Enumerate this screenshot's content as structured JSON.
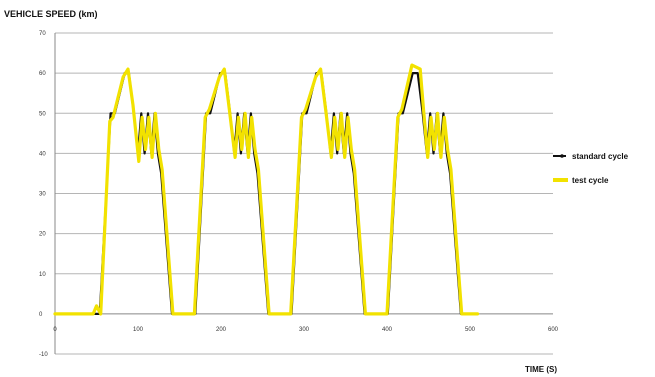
{
  "chart_data": {
    "type": "line",
    "title": "VEHICLE SPEED (km)",
    "xlabel": "TIME (S)",
    "ylabel": "",
    "xlim": [
      0,
      600
    ],
    "ylim": [
      -10,
      70
    ],
    "x_ticks": [
      0,
      100,
      200,
      300,
      400,
      500,
      600
    ],
    "y_ticks": [
      -10,
      0,
      10,
      20,
      30,
      40,
      50,
      60,
      70
    ],
    "grid": "horizontal",
    "legend_position": "right",
    "series": [
      {
        "name": "standard cycle",
        "color": "#111111",
        "x": [
          0,
          49,
          54,
          67,
          72,
          84,
          89,
          95,
          100,
          104,
          108,
          112,
          116,
          120,
          124,
          128,
          141,
          144,
          165,
          169,
          182,
          187,
          199,
          205,
          211,
          216,
          220,
          224,
          228,
          232,
          236,
          240,
          244,
          257,
          260,
          281,
          285,
          298,
          303,
          315,
          321,
          327,
          332,
          336,
          340,
          344,
          348,
          352,
          356,
          360,
          373,
          376,
          397,
          401,
          414,
          419,
          431,
          437,
          443,
          448,
          452,
          456,
          460,
          464,
          468,
          472,
          476,
          489,
          492,
          509
        ],
        "y": [
          0,
          0,
          0,
          50,
          50,
          60,
          60,
          50,
          40,
          50,
          40,
          50,
          40,
          50,
          40,
          35,
          0,
          0,
          0,
          0,
          50,
          50,
          60,
          60,
          50,
          40,
          50,
          40,
          50,
          40,
          50,
          40,
          35,
          0,
          0,
          0,
          0,
          50,
          50,
          60,
          60,
          50,
          40,
          50,
          40,
          50,
          40,
          50,
          40,
          35,
          0,
          0,
          0,
          0,
          50,
          50,
          60,
          60,
          50,
          40,
          50,
          40,
          50,
          40,
          50,
          40,
          35,
          0,
          0,
          0
        ]
      },
      {
        "name": "test cycle",
        "color": "#f2e200",
        "x": [
          0,
          46,
          50,
          55,
          66,
          70,
          82,
          88,
          94,
          101,
          105,
          109,
          113,
          117,
          121,
          125,
          129,
          142,
          145,
          164,
          168,
          181,
          186,
          198,
          204,
          210,
          217,
          221,
          225,
          229,
          233,
          237,
          241,
          245,
          258,
          261,
          280,
          284,
          297,
          302,
          314,
          320,
          326,
          333,
          337,
          341,
          345,
          349,
          353,
          357,
          361,
          374,
          377,
          396,
          400,
          413,
          418,
          430,
          440,
          444,
          449,
          453,
          457,
          461,
          465,
          469,
          473,
          477,
          490,
          493,
          509
        ],
        "y": [
          0,
          0,
          2,
          0,
          48,
          49,
          59,
          61,
          52,
          38,
          49,
          41,
          49,
          39,
          50,
          41,
          36,
          0,
          0,
          0,
          0,
          49,
          51,
          59,
          61,
          51,
          39,
          49,
          41,
          50,
          39,
          49,
          41,
          36,
          0,
          0,
          0,
          0,
          49,
          51,
          59,
          61,
          51,
          39,
          49,
          41,
          50,
          39,
          49,
          41,
          36,
          0,
          0,
          0,
          0,
          49,
          51,
          62,
          61,
          51,
          39,
          49,
          41,
          50,
          39,
          49,
          41,
          36,
          0,
          0,
          0
        ]
      }
    ]
  }
}
